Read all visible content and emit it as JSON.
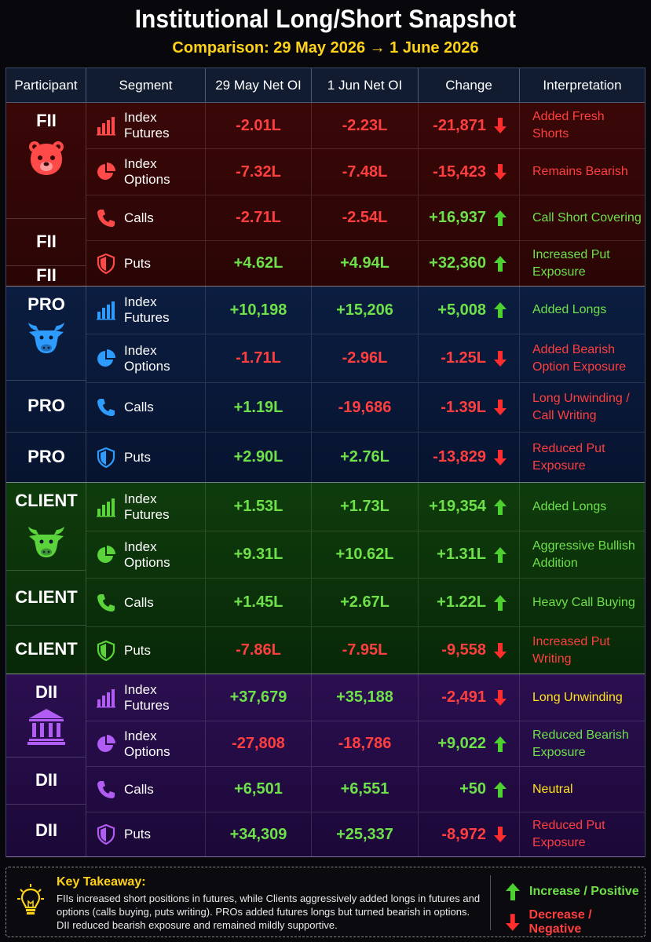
{
  "title": "Institutional Long/Short Snapshot",
  "subtitle": "Comparison: 29 May 2026 → 1 June 2026",
  "headers": [
    "Participant",
    "Segment",
    "29 May Net OI",
    "1 Jun Net OI",
    "Change",
    "Interpretation"
  ],
  "groups": [
    {
      "labels": [
        "FII",
        "FII",
        "FII"
      ],
      "icon": "bear-icon",
      "rows": [
        {
          "segment": "Index Futures",
          "icon": "bar-chart-icon",
          "may29": "-2.01L",
          "jun1": "-2.23L",
          "change": "-21,871",
          "dir": "down",
          "interp": "Added Fresh Shorts",
          "interp_color": "neg"
        },
        {
          "segment": "Index Options",
          "icon": "pie-chart-icon",
          "may29": "-7.32L",
          "jun1": "-7.48L",
          "change": "-15,423",
          "dir": "down",
          "interp": "Remains Bearish",
          "interp_color": "neg"
        },
        {
          "segment": "Calls",
          "icon": "phone-icon",
          "may29": "-2.71L",
          "jun1": "-2.54L",
          "change": "+16,937",
          "dir": "up",
          "interp": "Call Short Covering",
          "interp_color": "pos"
        },
        {
          "segment": "Puts",
          "icon": "shield-icon",
          "may29": "+4.62L",
          "jun1": "+4.94L",
          "change": "+32,360",
          "dir": "up",
          "interp": "Increased Put Exposure",
          "interp_color": "pos"
        }
      ]
    },
    {
      "labels": [
        "PRO",
        "PRO",
        "PRO"
      ],
      "icon": "bull-icon",
      "rows": [
        {
          "segment": "Index Futures",
          "icon": "bar-chart-icon",
          "may29": "+10,198",
          "jun1": "+15,206",
          "change": "+5,008",
          "dir": "up",
          "interp": "Added Longs",
          "interp_color": "pos"
        },
        {
          "segment": "Index Options",
          "icon": "pie-chart-icon",
          "may29": "-1.71L",
          "jun1": "-2.96L",
          "change": "-1.25L",
          "dir": "down",
          "interp": "Added Bearish Option Exposure",
          "interp_color": "neg"
        },
        {
          "segment": "Calls",
          "icon": "phone-icon",
          "may29": "+1.19L",
          "jun1": "-19,686",
          "change": "-1.39L",
          "dir": "down",
          "interp": "Long Unwinding / Call Writing",
          "interp_color": "neg"
        },
        {
          "segment": "Puts",
          "icon": "shield-icon",
          "may29": "+2.90L",
          "jun1": "+2.76L",
          "change": "-13,829",
          "dir": "down",
          "interp": "Reduced Put Exposure",
          "interp_color": "neg"
        }
      ]
    },
    {
      "labels": [
        "CLIENT",
        "CLIENT",
        "CLIENT"
      ],
      "icon": "bull-icon",
      "rows": [
        {
          "segment": "Index Futures",
          "icon": "bar-chart-icon",
          "may29": "+1.53L",
          "jun1": "+1.73L",
          "change": "+19,354",
          "dir": "up",
          "interp": "Added Longs",
          "interp_color": "pos"
        },
        {
          "segment": "Index Options",
          "icon": "pie-chart-icon",
          "may29": "+9.31L",
          "jun1": "+10.62L",
          "change": "+1.31L",
          "dir": "up",
          "interp": "Aggressive Bullish Addition",
          "interp_color": "pos"
        },
        {
          "segment": "Calls",
          "icon": "phone-icon",
          "may29": "+1.45L",
          "jun1": "+2.67L",
          "change": "+1.22L",
          "dir": "up",
          "interp": "Heavy Call Buying",
          "interp_color": "pos"
        },
        {
          "segment": "Puts",
          "icon": "shield-icon",
          "may29": "-7.86L",
          "jun1": "-7.95L",
          "change": "-9,558",
          "dir": "down",
          "interp": "Increased Put Writing",
          "interp_color": "neg"
        }
      ]
    },
    {
      "labels": [
        "DII",
        "DII",
        "DII"
      ],
      "icon": "bank-icon",
      "rows": [
        {
          "segment": "Index Futures",
          "icon": "bar-chart-icon",
          "may29": "+37,679",
          "jun1": "+35,188",
          "change": "-2,491",
          "dir": "down",
          "interp": "Long Unwinding",
          "interp_color": "yel"
        },
        {
          "segment": "Index Options",
          "icon": "pie-chart-icon",
          "may29": "-27,808",
          "jun1": "-18,786",
          "change": "+9,022",
          "dir": "up",
          "interp": "Reduced Bearish Exposure",
          "interp_color": "pos"
        },
        {
          "segment": "Calls",
          "icon": "phone-icon",
          "may29": "+6,501",
          "jun1": "+6,551",
          "change": "+50",
          "dir": "up",
          "interp": "Neutral",
          "interp_color": "yel"
        },
        {
          "segment": "Puts",
          "icon": "shield-icon",
          "may29": "+34,309",
          "jun1": "+25,337",
          "change": "-8,972",
          "dir": "down",
          "interp": "Reduced Put Exposure",
          "interp_color": "neg"
        }
      ]
    }
  ],
  "takeaway": {
    "title": "Key Takeaway:",
    "text": "FIIs increased short positions in futures, while Clients aggressively added longs in futures and options (calls buying, puts writing). PROs added futures longs but turned bearish in options. DII reduced bearish exposure and remained mildly supportive."
  },
  "legend": {
    "increase": "Increase / Positive",
    "decrease": "Decrease / Negative"
  },
  "colors": {
    "positive": "#6ee04a",
    "negative": "#ff3f3f",
    "highlight": "#ffe21a",
    "fii": "#3a0808",
    "pro": "#0a1c3e",
    "client": "#0f3a0c",
    "dii": "#2a0f4e"
  }
}
